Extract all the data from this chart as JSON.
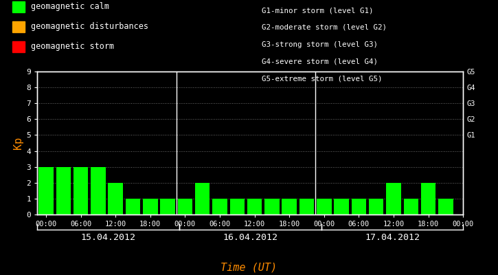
{
  "background_color": "#000000",
  "plot_bg_color": "#000000",
  "bar_color": "#00ff00",
  "text_color": "#ffffff",
  "xlabel_color": "#ff8c00",
  "ylabel_color": "#ff8c00",
  "divider_color": "#ffffff",
  "days": [
    "15.04.2012",
    "16.04.2012",
    "17.04.2012"
  ],
  "kp_values_day1": [
    3,
    3,
    3,
    3,
    2,
    1,
    1,
    1
  ],
  "kp_values_day2": [
    1,
    2,
    1,
    1,
    1,
    1,
    1,
    1
  ],
  "kp_values_day3": [
    1,
    1,
    1,
    1,
    2,
    1,
    2,
    1
  ],
  "ylim": [
    0,
    9
  ],
  "yticks": [
    0,
    1,
    2,
    3,
    4,
    5,
    6,
    7,
    8,
    9
  ],
  "legend_items": [
    {
      "color": "#00ff00",
      "label": "geomagnetic calm"
    },
    {
      "color": "#ffa500",
      "label": "geomagnetic disturbances"
    },
    {
      "color": "#ff0000",
      "label": "geomagnetic storm"
    }
  ],
  "storm_labels": [
    "G1-minor storm (level G1)",
    "G2-moderate storm (level G2)",
    "G3-strong storm (level G3)",
    "G4-severe storm (level G4)",
    "G5-extreme storm (level G5)"
  ],
  "xlabel": "Time (UT)",
  "ylabel": "Kp",
  "bar_width": 0.85
}
